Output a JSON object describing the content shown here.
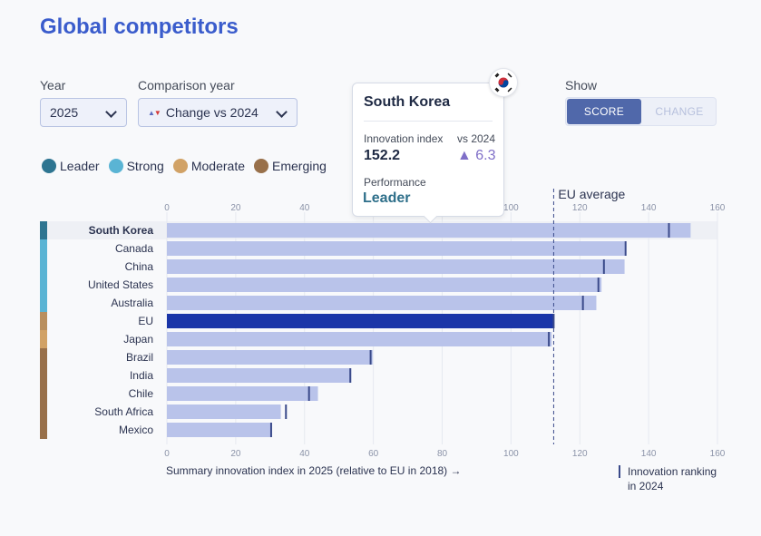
{
  "page": {
    "title": "Global competitors"
  },
  "controls": {
    "year_label": "Year",
    "year_value": "2025",
    "comparison_label": "Comparison year",
    "comparison_value": "Change vs 2024",
    "show_label": "Show",
    "show_options": [
      "SCORE",
      "CHANGE"
    ],
    "show_selected": "SCORE"
  },
  "legend": [
    {
      "label": "Leader",
      "color": "#2e7591"
    },
    {
      "label": "Strong",
      "color": "#5ab4d4"
    },
    {
      "label": "Moderate",
      "color": "#d1a266"
    },
    {
      "label": "Emerging",
      "color": "#98704a"
    }
  ],
  "tooltip": {
    "country": "South Korea",
    "index_label": "Innovation index",
    "index_value": "152.2",
    "vs_label": "vs 2024",
    "change_value": "▲ 6.3",
    "performance_label": "Performance",
    "performance_value": "Leader"
  },
  "footer": {
    "axis_caption": "Summary innovation index in 2025 (relative to EU in 2018) →",
    "ranking_caption": "Innovation ranking in 2024"
  },
  "chart_data": {
    "type": "bar",
    "orientation": "horizontal",
    "xlim": [
      0,
      160
    ],
    "xticks": [
      0,
      20,
      40,
      60,
      80,
      100,
      120,
      140,
      160
    ],
    "reference_line": {
      "label": "EU average",
      "value": 112.4
    },
    "highlighted": "South Korea",
    "series": [
      {
        "name": "Innovation index 2025",
        "values": [
          152.2,
          133.4,
          133.0,
          126.3,
          124.8,
          112.4,
          111.8,
          59.8,
          53.6,
          43.9,
          33.1,
          30.4
        ]
      },
      {
        "name": "Innovation ranking in 2024",
        "values": [
          145.9,
          133.3,
          127.0,
          125.4,
          120.9,
          112.4,
          111.0,
          59.2,
          53.3,
          41.3,
          34.6,
          30.3
        ]
      }
    ],
    "categories": [
      "South Korea",
      "Canada",
      "China",
      "United States",
      "Australia",
      "EU",
      "Japan",
      "Brazil",
      "India",
      "Chile",
      "South Africa",
      "Mexico"
    ],
    "groups": [
      "Leader",
      "Strong",
      "Strong",
      "Strong",
      "Strong",
      "EU",
      "Moderate",
      "Emerging",
      "Emerging",
      "Emerging",
      "Emerging",
      "Emerging"
    ]
  }
}
